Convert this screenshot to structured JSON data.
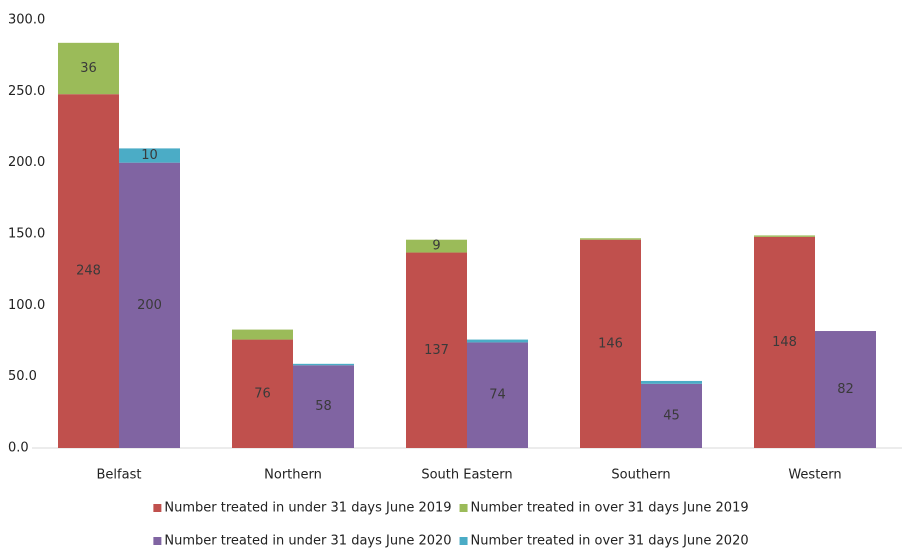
{
  "chart_data": {
    "type": "stacked_grouped_bar",
    "categories": [
      "Belfast",
      "Northern",
      "South Eastern",
      "Southern",
      "Western"
    ],
    "series": [
      {
        "name": "Number treated in under 31 days June 2019",
        "color": "#c0504d",
        "stack": 0,
        "values": [
          248,
          76,
          137,
          146,
          148
        ]
      },
      {
        "name": "Number treated in over 31 days June 2019",
        "color": "#9bbb59",
        "stack": 0,
        "values": [
          36,
          7,
          9,
          1,
          1
        ]
      },
      {
        "name": "Number treated in under 31 days June 2020",
        "color": "#8064a2",
        "stack": 1,
        "values": [
          200,
          58,
          74,
          45,
          82
        ]
      },
      {
        "name": "Number treated in over 31 days June 2020",
        "color": "#4bacc6",
        "stack": 1,
        "values": [
          10,
          1,
          2,
          2,
          0
        ]
      }
    ],
    "ylim": [
      0,
      300
    ],
    "yticks": [
      {
        "value": 0,
        "label": "0.0"
      },
      {
        "value": 50,
        "label": "50.0"
      },
      {
        "value": 100,
        "label": "100.0"
      },
      {
        "value": 150,
        "label": "150.0"
      },
      {
        "value": 200,
        "label": "200.0"
      },
      {
        "value": 250,
        "label": "250.0"
      },
      {
        "value": 300,
        "label": "300.0"
      }
    ],
    "legend": "bottom"
  }
}
